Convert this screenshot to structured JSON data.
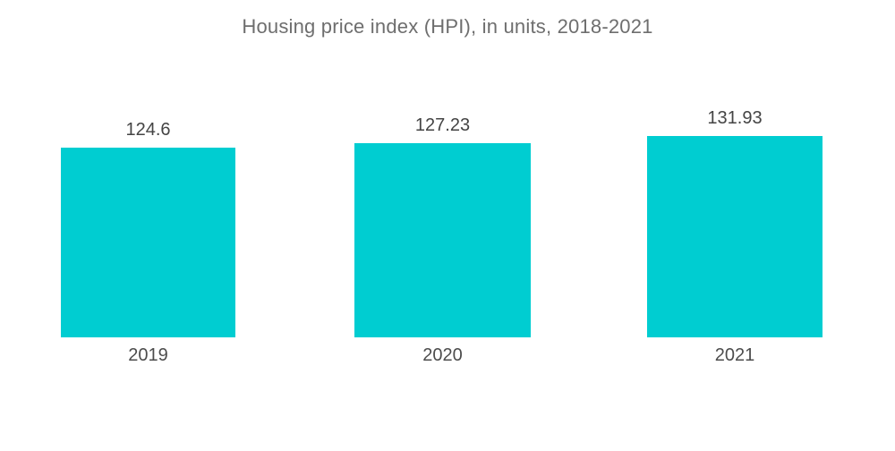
{
  "chart_data": {
    "type": "bar",
    "title": "Housing price index (HPI), in units, 2018-2021",
    "categories": [
      "2019",
      "2020",
      "2021"
    ],
    "values": [
      124.6,
      127.23,
      131.93
    ],
    "xlabel": "",
    "ylabel": "",
    "ylim": [
      0,
      131.93
    ],
    "grid": false,
    "legend": false,
    "axes_visible": false,
    "data_labels_position": "above-bar",
    "bar_color": "#00CDD1",
    "background_color": "#ffffff",
    "title_color": "#6e6e6e",
    "value_label_color": "#444444",
    "category_label_color": "#4c4c4c"
  }
}
